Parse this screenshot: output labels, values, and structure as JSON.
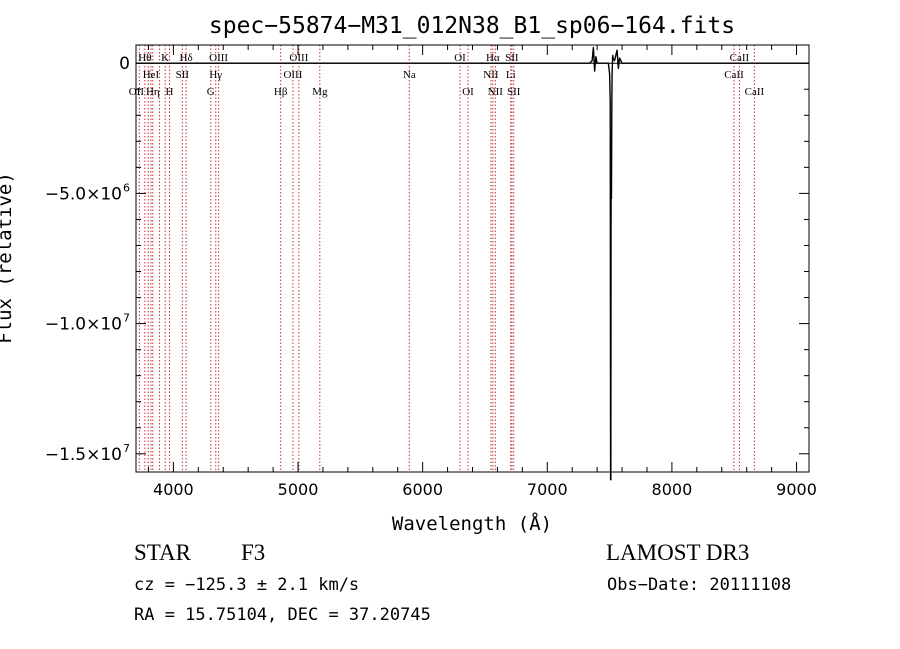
{
  "chart_data": {
    "type": "line",
    "title": "spec−55874−M31_012N38_B1_sp06−164.fits",
    "xlabel": "Wavelength (Å)",
    "ylabel": "Flux (relative)",
    "xlim": [
      3700,
      9100
    ],
    "ylim": [
      -15700000,
      700000
    ],
    "grid": false,
    "legend": "none",
    "x_ticks": [
      {
        "value": 4000,
        "label": "4000"
      },
      {
        "value": 5000,
        "label": "5000"
      },
      {
        "value": 6000,
        "label": "6000"
      },
      {
        "value": 7000,
        "label": "7000"
      },
      {
        "value": 8000,
        "label": "8000"
      },
      {
        "value": 9000,
        "label": "9000"
      }
    ],
    "y_ticks": [
      {
        "value": 0,
        "label": "0",
        "exp": ""
      },
      {
        "value": -5000000,
        "label": "−5.0×10",
        "exp": "6"
      },
      {
        "value": -10000000,
        "label": "−1.0×10",
        "exp": "7"
      },
      {
        "value": -15000000,
        "label": "−1.5×10",
        "exp": "7"
      }
    ],
    "series": [
      {
        "color": "#000000",
        "x": [
          3700,
          7340,
          7360,
          7370,
          7380,
          7390,
          7400,
          7490,
          7500,
          7505,
          7508,
          7510,
          7512,
          7515,
          7518,
          7520,
          7525,
          7530,
          7540,
          7560,
          7570,
          7580,
          7600,
          9100
        ],
        "y": [
          0,
          0,
          100000,
          600000,
          -300000,
          250000,
          0,
          0,
          -400000,
          -1500000,
          -16000000,
          -16000000,
          -4000000,
          -5200000,
          -1500000,
          -400000,
          300000,
          150000,
          100000,
          500000,
          -200000,
          200000,
          0,
          0
        ]
      }
    ],
    "line_marks": [
      {
        "x": 3727,
        "label": "OII",
        "row": 2,
        "dx": -3
      },
      {
        "x": 3771,
        "label": "Hθ",
        "row": 0
      },
      {
        "x": 3798,
        "label": "",
        "row": 0
      },
      {
        "x": 3820,
        "label": "HeI",
        "row": 1
      },
      {
        "x": 3835,
        "label": "Hη",
        "row": 2
      },
      {
        "x": 3889,
        "label": "",
        "row": 0
      },
      {
        "x": 3934,
        "label": "K",
        "row": 0
      },
      {
        "x": 3969,
        "label": "H",
        "row": 2
      },
      {
        "x": 4072,
        "label": "SII",
        "row": 1
      },
      {
        "x": 4102,
        "label": "Hδ",
        "row": 0
      },
      {
        "x": 4300,
        "label": "G",
        "row": 2
      },
      {
        "x": 4340,
        "label": "Hγ",
        "row": 1
      },
      {
        "x": 4363,
        "label": "OIII",
        "row": 0
      },
      {
        "x": 4861,
        "label": "Hβ",
        "row": 2
      },
      {
        "x": 4959,
        "label": "OIII",
        "row": 1
      },
      {
        "x": 5007,
        "label": "OIII",
        "row": 0
      },
      {
        "x": 5175,
        "label": "Mg",
        "row": 2
      },
      {
        "x": 5893,
        "label": "Na",
        "row": 1
      },
      {
        "x": 6300,
        "label": "OI",
        "row": 0
      },
      {
        "x": 6364,
        "label": "OI",
        "row": 2
      },
      {
        "x": 6548,
        "label": "NII",
        "row": 1
      },
      {
        "x": 6563,
        "label": "Hα",
        "row": 0
      },
      {
        "x": 6583,
        "label": "NII",
        "row": 2
      },
      {
        "x": 6707,
        "label": "Li",
        "row": 1
      },
      {
        "x": 6716,
        "label": "SII",
        "row": 0
      },
      {
        "x": 6731,
        "label": "SII",
        "row": 2
      },
      {
        "x": 8498,
        "label": "CaII",
        "row": 1
      },
      {
        "x": 8542,
        "label": "CaII",
        "row": 0
      },
      {
        "x": 8662,
        "label": "CaII",
        "row": 2
      }
    ]
  },
  "info": {
    "class_label": "STAR",
    "subclass_label": "F3",
    "survey": "LAMOST DR3",
    "cz": "cz = −125.3 ± 2.1 km/s",
    "obs_date": "Obs−Date: 20111108",
    "coords": "RA =  15.75104, DEC =  37.20745"
  }
}
